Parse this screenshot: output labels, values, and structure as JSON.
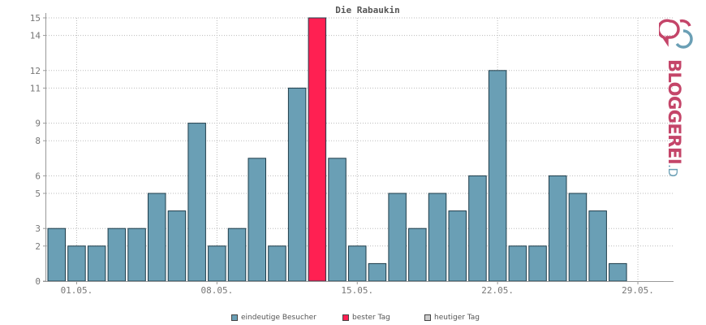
{
  "chart_data": {
    "type": "bar",
    "title": "Die Rabaukin",
    "x": [
      "30.04.",
      "01.05.",
      "02.05.",
      "03.05.",
      "04.05.",
      "05.05.",
      "06.05.",
      "07.05.",
      "08.05.",
      "09.05.",
      "10.05.",
      "11.05.",
      "12.05.",
      "13.05.",
      "14.05.",
      "15.05.",
      "16.05.",
      "17.05.",
      "18.05.",
      "19.05.",
      "20.05.",
      "21.05.",
      "22.05.",
      "23.05.",
      "24.05.",
      "25.05.",
      "26.05.",
      "27.05.",
      "28.05.",
      "29.05.",
      "30.05."
    ],
    "values": [
      3,
      2,
      2,
      3,
      3,
      5,
      4,
      9,
      2,
      3,
      7,
      2,
      11,
      15,
      7,
      2,
      1,
      5,
      3,
      5,
      4,
      6,
      12,
      2,
      2,
      6,
      5,
      4,
      1,
      0,
      0
    ],
    "best_day_index": 13,
    "xtick_labels": [
      "01.05.",
      "08.05.",
      "15.05.",
      "22.05.",
      "29.05."
    ],
    "xtick_positions": [
      "01.05.",
      "08.05.",
      "15.05.",
      "22.05.",
      "29.05."
    ],
    "ytick_labels": [
      "0",
      "2",
      "3",
      "5",
      "6",
      "8",
      "9",
      "11",
      "12",
      "14",
      "15"
    ],
    "ylim": [
      0,
      15
    ],
    "grid": true,
    "colors": {
      "bar": "#6a9fb5",
      "best": "#ff2052",
      "today": "#cccccc",
      "bar_border": "#1e3c4a"
    },
    "legend": {
      "position": "bottom-center",
      "items": [
        {
          "label": "eindeutige Besucher",
          "color": "#6a9fb5"
        },
        {
          "label": "bester Tag",
          "color": "#ff2052"
        },
        {
          "label": "heutiger Tag",
          "color": "#cccccc"
        }
      ]
    }
  },
  "logo": {
    "text_main": "BLOGGEREI",
    "text_suffix": ".DE",
    "color_main": "#c44569",
    "color_suffix": "#6a9fb5"
  }
}
